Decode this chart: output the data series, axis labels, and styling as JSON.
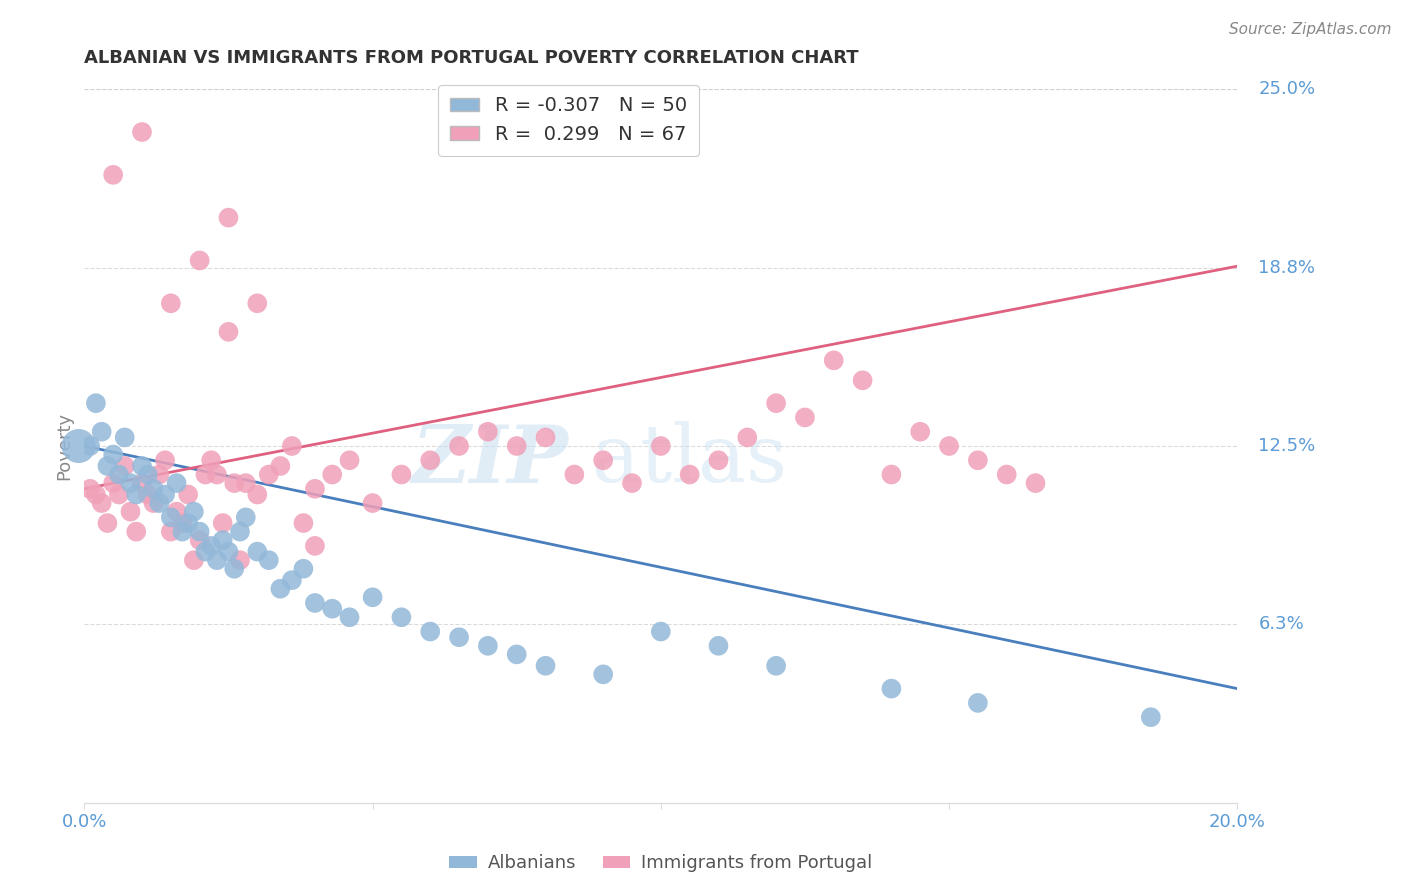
{
  "title": "ALBANIAN VS IMMIGRANTS FROM PORTUGAL POVERTY CORRELATION CHART",
  "source": "Source: ZipAtlas.com",
  "ylabel": "Poverty",
  "xlim": [
    0.0,
    0.2
  ],
  "ylim": [
    0.0,
    0.25
  ],
  "blue_color": "#92b8d9",
  "pink_color": "#f0a0b8",
  "blue_line_color": "#4a7fbe",
  "pink_line_color": "#e06080",
  "blue_label": "Albanians",
  "pink_label": "Immigrants from Portugal",
  "blue_R": "-0.307",
  "blue_N": "50",
  "pink_R": "0.299",
  "pink_N": "67",
  "watermark_zip": "ZIP",
  "watermark_atlas": "atlas",
  "background_color": "#ffffff",
  "grid_color": "#cccccc",
  "tick_label_color": "#5b9bd5",
  "blue_line_endpoints": [
    [
      0.0,
      0.125
    ],
    [
      0.2,
      0.04
    ]
  ],
  "pink_line_endpoints": [
    [
      0.0,
      0.11
    ],
    [
      0.2,
      0.188
    ]
  ],
  "blue_scatter_x": [
    0.001,
    0.002,
    0.003,
    0.004,
    0.005,
    0.006,
    0.007,
    0.008,
    0.009,
    0.01,
    0.011,
    0.012,
    0.013,
    0.014,
    0.015,
    0.016,
    0.017,
    0.018,
    0.019,
    0.02,
    0.021,
    0.022,
    0.023,
    0.024,
    0.025,
    0.026,
    0.027,
    0.028,
    0.03,
    0.032,
    0.034,
    0.036,
    0.038,
    0.04,
    0.043,
    0.046,
    0.05,
    0.055,
    0.06,
    0.065,
    0.07,
    0.075,
    0.08,
    0.09,
    0.1,
    0.11,
    0.12,
    0.14,
    0.155,
    0.185
  ],
  "blue_scatter_y": [
    0.125,
    0.14,
    0.13,
    0.118,
    0.122,
    0.115,
    0.128,
    0.112,
    0.108,
    0.118,
    0.115,
    0.11,
    0.105,
    0.108,
    0.1,
    0.112,
    0.095,
    0.098,
    0.102,
    0.095,
    0.088,
    0.09,
    0.085,
    0.092,
    0.088,
    0.082,
    0.095,
    0.1,
    0.088,
    0.085,
    0.075,
    0.078,
    0.082,
    0.07,
    0.068,
    0.065,
    0.072,
    0.065,
    0.06,
    0.058,
    0.055,
    0.052,
    0.048,
    0.045,
    0.06,
    0.055,
    0.048,
    0.04,
    0.035,
    0.03
  ],
  "pink_scatter_x": [
    0.001,
    0.002,
    0.003,
    0.004,
    0.005,
    0.006,
    0.007,
    0.008,
    0.009,
    0.01,
    0.011,
    0.012,
    0.013,
    0.014,
    0.015,
    0.016,
    0.017,
    0.018,
    0.019,
    0.02,
    0.021,
    0.022,
    0.023,
    0.024,
    0.025,
    0.026,
    0.027,
    0.028,
    0.03,
    0.032,
    0.034,
    0.036,
    0.038,
    0.04,
    0.043,
    0.046,
    0.05,
    0.055,
    0.06,
    0.065,
    0.07,
    0.075,
    0.08,
    0.085,
    0.09,
    0.095,
    0.1,
    0.105,
    0.11,
    0.115,
    0.12,
    0.125,
    0.13,
    0.135,
    0.14,
    0.145,
    0.15,
    0.155,
    0.16,
    0.165,
    0.005,
    0.01,
    0.015,
    0.02,
    0.025,
    0.03,
    0.04
  ],
  "pink_scatter_y": [
    0.11,
    0.108,
    0.105,
    0.098,
    0.112,
    0.108,
    0.118,
    0.102,
    0.095,
    0.112,
    0.108,
    0.105,
    0.115,
    0.12,
    0.095,
    0.102,
    0.098,
    0.108,
    0.085,
    0.092,
    0.115,
    0.12,
    0.115,
    0.098,
    0.205,
    0.112,
    0.085,
    0.112,
    0.108,
    0.115,
    0.118,
    0.125,
    0.098,
    0.11,
    0.115,
    0.12,
    0.105,
    0.115,
    0.12,
    0.125,
    0.13,
    0.125,
    0.128,
    0.115,
    0.12,
    0.112,
    0.125,
    0.115,
    0.12,
    0.128,
    0.14,
    0.135,
    0.155,
    0.148,
    0.115,
    0.13,
    0.125,
    0.12,
    0.115,
    0.112,
    0.22,
    0.235,
    0.175,
    0.19,
    0.165,
    0.175,
    0.09
  ]
}
